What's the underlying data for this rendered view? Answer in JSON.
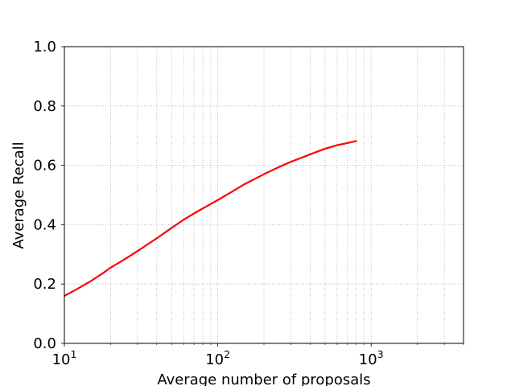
{
  "chart_data": {
    "type": "line",
    "title": "",
    "xlabel": "Average number of proposals",
    "ylabel": "Average Recall",
    "xscale": "log",
    "xlim": [
      10,
      4000
    ],
    "ylim": [
      0.0,
      1.0
    ],
    "grid": true,
    "grid_style": "dotted",
    "x_ticks": [
      {
        "value": 10,
        "base": "10",
        "exp": "1"
      },
      {
        "value": 100,
        "base": "10",
        "exp": "2"
      },
      {
        "value": 1000,
        "base": "10",
        "exp": "3"
      }
    ],
    "y_ticks": [
      {
        "value": 0.0,
        "label": "0.0"
      },
      {
        "value": 0.2,
        "label": "0.2"
      },
      {
        "value": 0.4,
        "label": "0.4"
      },
      {
        "value": 0.6,
        "label": "0.6"
      },
      {
        "value": 0.8,
        "label": "0.8"
      },
      {
        "value": 1.0,
        "label": "1.0"
      }
    ],
    "series": [
      {
        "color": "#ff0000",
        "x": [
          10,
          12,
          15,
          18,
          20,
          25,
          30,
          40,
          50,
          60,
          70,
          80,
          100,
          120,
          150,
          200,
          250,
          300,
          400,
          500,
          600,
          700,
          800
        ],
        "y": [
          0.16,
          0.182,
          0.211,
          0.238,
          0.255,
          0.285,
          0.311,
          0.354,
          0.389,
          0.417,
          0.438,
          0.455,
          0.483,
          0.507,
          0.537,
          0.57,
          0.594,
          0.612,
          0.637,
          0.656,
          0.668,
          0.675,
          0.682
        ]
      }
    ]
  }
}
